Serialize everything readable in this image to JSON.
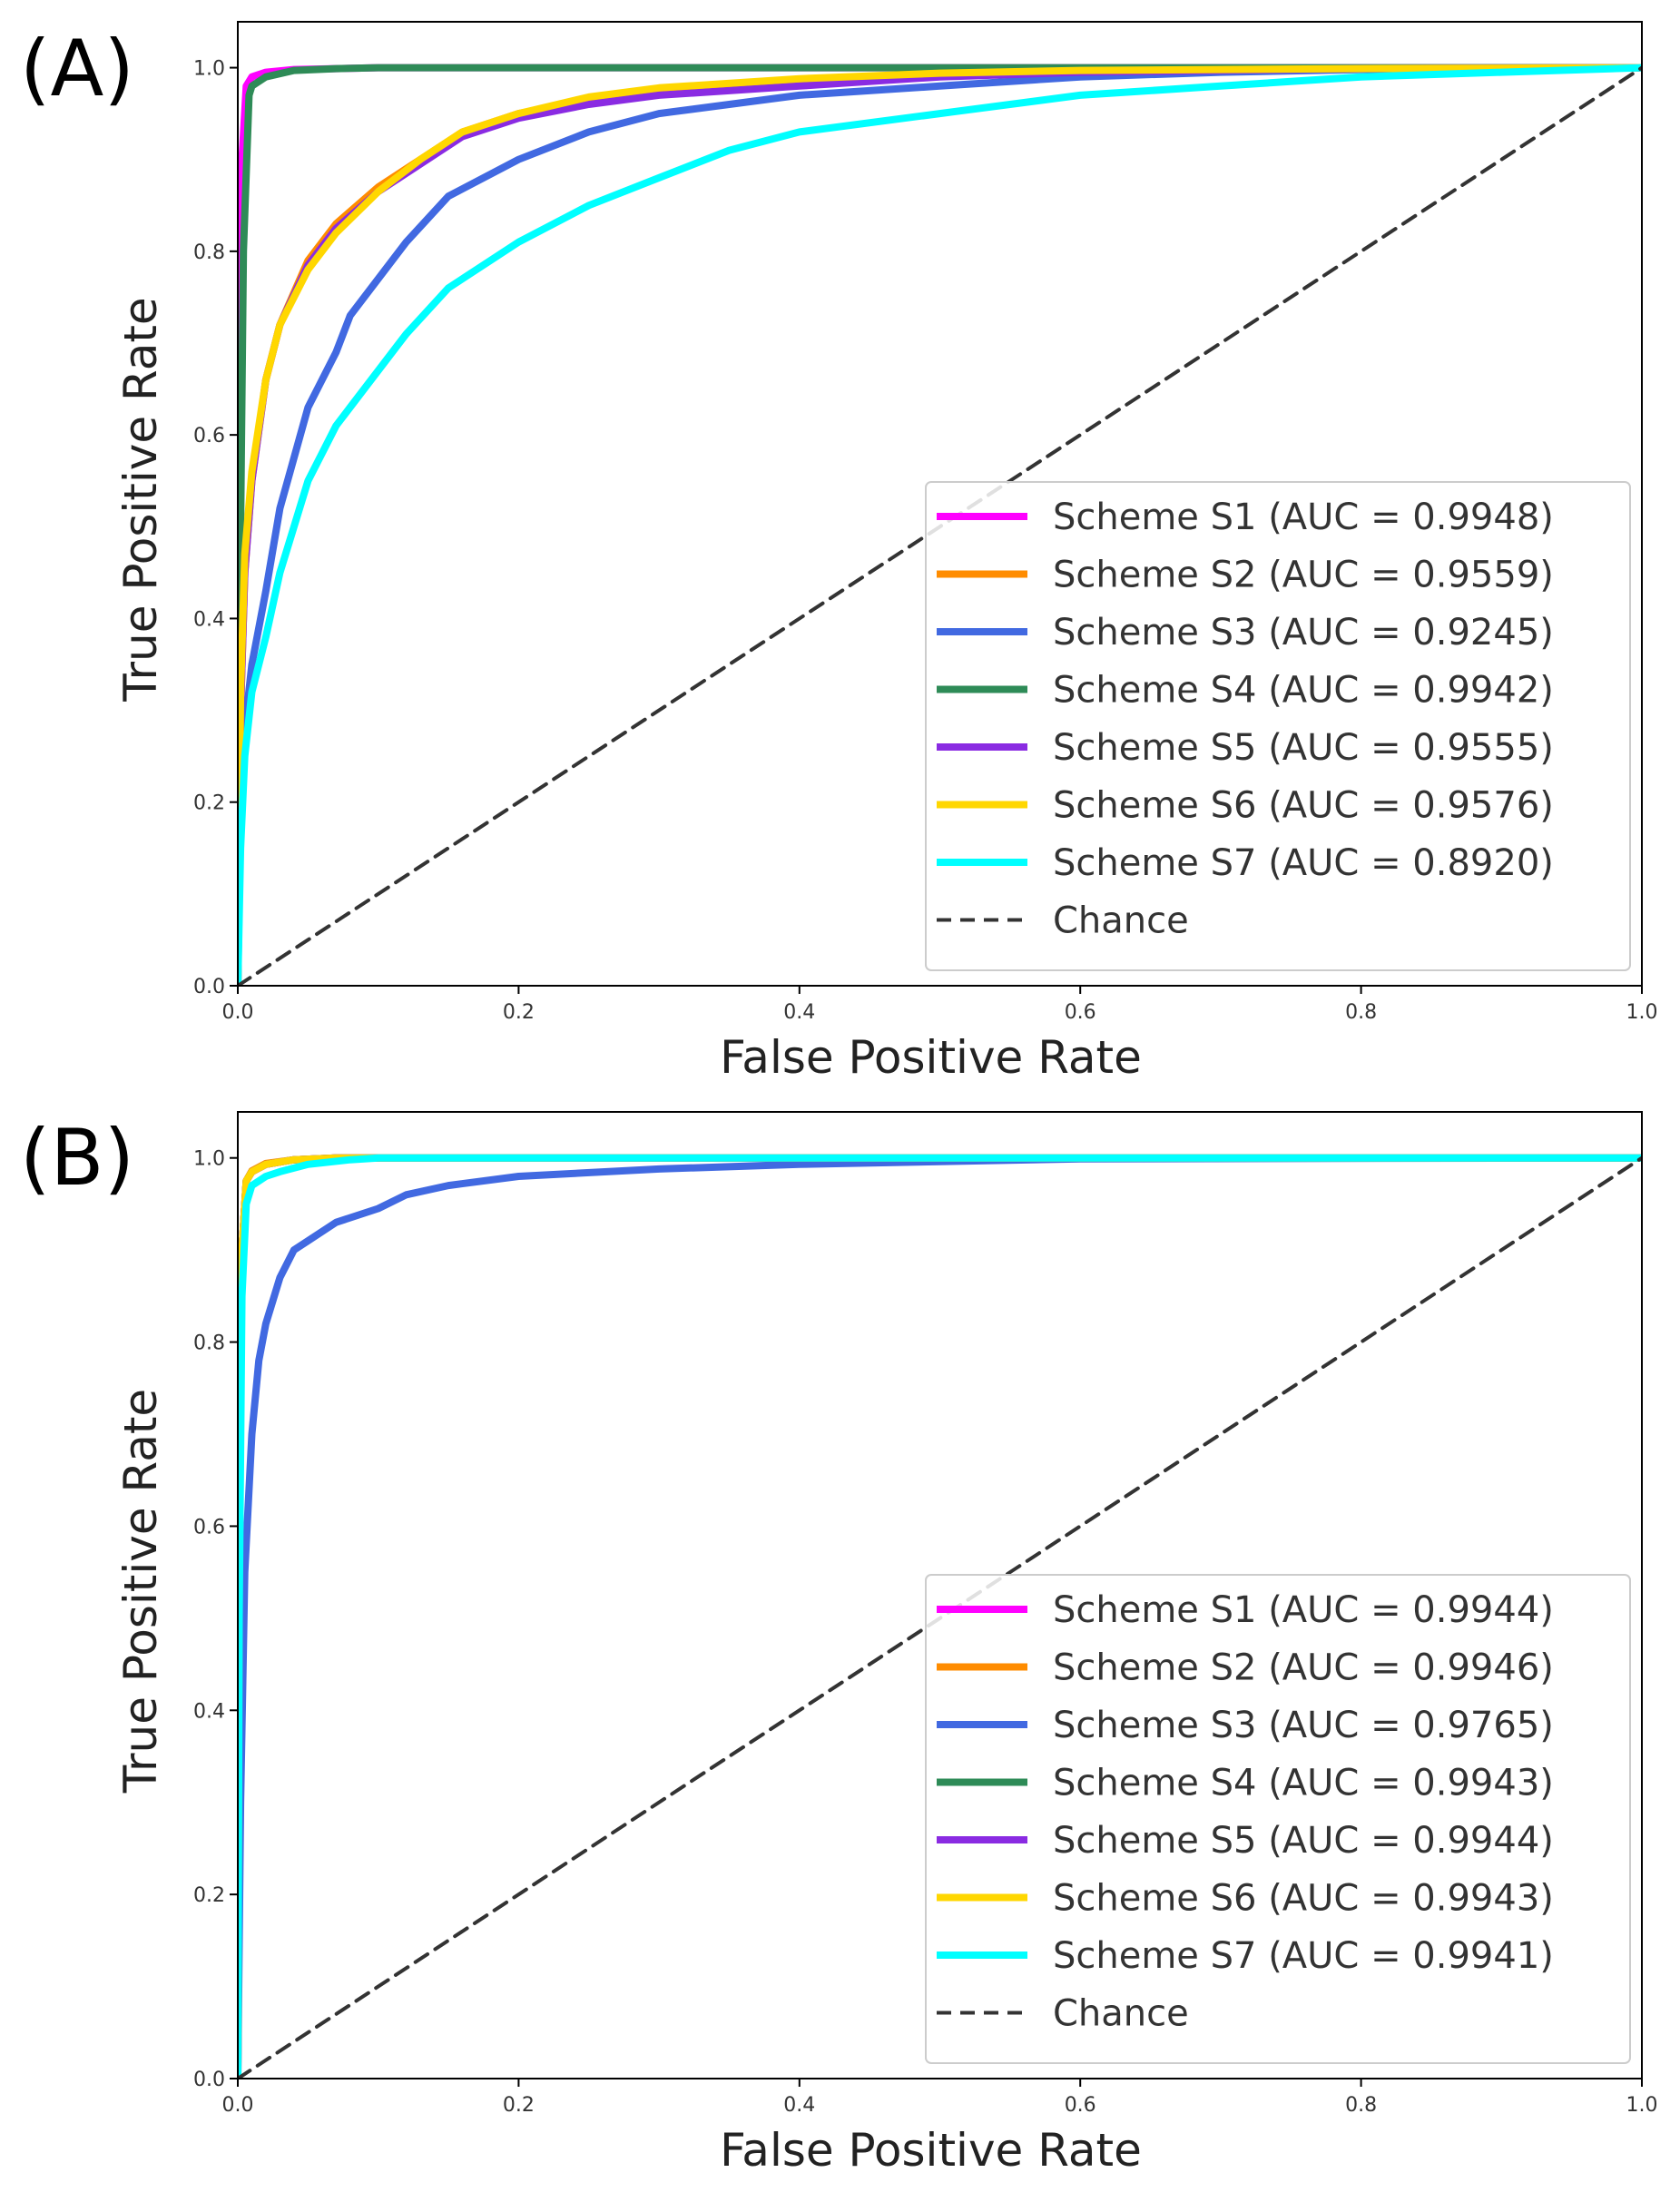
{
  "chart_data": [
    {
      "type": "line",
      "panel_label": "(A)",
      "xlabel": "False Positive Rate",
      "ylabel": "True Positive Rate",
      "xlim": [
        0.0,
        1.0
      ],
      "ylim": [
        0.0,
        1.05
      ],
      "xticks": [
        "0.0",
        "0.2",
        "0.4",
        "0.6",
        "0.8",
        "1.0"
      ],
      "yticks": [
        "0.0",
        "0.2",
        "0.4",
        "0.6",
        "0.8",
        "1.0"
      ],
      "grid": false,
      "legend_position": "lower-right",
      "series": [
        {
          "name": "Scheme S1 (AUC = 0.9948)",
          "color": "#ff00ff",
          "x": [
            0,
            0.001,
            0.003,
            0.006,
            0.01,
            0.02,
            0.04,
            0.1,
            0.3,
            1.0
          ],
          "y": [
            0,
            0.55,
            0.9,
            0.98,
            0.99,
            0.995,
            0.998,
            1.0,
            1.0,
            1.0
          ]
        },
        {
          "name": "Scheme S2 (AUC = 0.9559)",
          "color": "#ff8c00",
          "x": [
            0,
            0.002,
            0.005,
            0.01,
            0.02,
            0.03,
            0.05,
            0.07,
            0.1,
            0.13,
            0.16,
            0.2,
            0.25,
            0.3,
            0.4,
            0.5,
            0.6,
            0.8,
            1.0
          ],
          "y": [
            0,
            0.3,
            0.45,
            0.55,
            0.66,
            0.72,
            0.79,
            0.83,
            0.87,
            0.9,
            0.93,
            0.95,
            0.965,
            0.975,
            0.985,
            0.992,
            0.996,
            0.999,
            1.0
          ]
        },
        {
          "name": "Scheme S3 (AUC = 0.9245)",
          "color": "#4169e1",
          "x": [
            0,
            0.002,
            0.005,
            0.01,
            0.02,
            0.03,
            0.05,
            0.07,
            0.08,
            0.1,
            0.12,
            0.15,
            0.2,
            0.25,
            0.3,
            0.4,
            0.5,
            0.6,
            0.7,
            0.8,
            1.0
          ],
          "y": [
            0,
            0.2,
            0.28,
            0.35,
            0.43,
            0.52,
            0.63,
            0.69,
            0.73,
            0.77,
            0.81,
            0.86,
            0.9,
            0.93,
            0.95,
            0.97,
            0.98,
            0.99,
            0.995,
            0.998,
            1.0
          ]
        },
        {
          "name": "Scheme S4 (AUC = 0.9942)",
          "color": "#2e8b57",
          "x": [
            0,
            0.002,
            0.004,
            0.008,
            0.01,
            0.02,
            0.04,
            0.07,
            0.1,
            0.3,
            1.0
          ],
          "y": [
            0,
            0.5,
            0.8,
            0.97,
            0.98,
            0.99,
            0.997,
            0.999,
            1.0,
            1.0,
            1.0
          ]
        },
        {
          "name": "Scheme S5 (AUC = 0.9555)",
          "color": "#8a2be2",
          "x": [
            0,
            0.002,
            0.005,
            0.01,
            0.02,
            0.03,
            0.05,
            0.07,
            0.1,
            0.13,
            0.16,
            0.2,
            0.25,
            0.3,
            0.4,
            0.5,
            0.6,
            0.8,
            1.0
          ],
          "y": [
            0,
            0.3,
            0.45,
            0.55,
            0.66,
            0.72,
            0.785,
            0.825,
            0.865,
            0.895,
            0.925,
            0.945,
            0.96,
            0.97,
            0.98,
            0.99,
            0.995,
            0.999,
            1.0
          ]
        },
        {
          "name": "Scheme S6 (AUC = 0.9576)",
          "color": "#ffd700",
          "x": [
            0,
            0.002,
            0.005,
            0.01,
            0.02,
            0.03,
            0.05,
            0.07,
            0.1,
            0.13,
            0.16,
            0.2,
            0.25,
            0.3,
            0.4,
            0.5,
            0.6,
            0.8,
            1.0
          ],
          "y": [
            0,
            0.32,
            0.47,
            0.56,
            0.66,
            0.72,
            0.78,
            0.82,
            0.865,
            0.9,
            0.93,
            0.95,
            0.968,
            0.978,
            0.988,
            0.994,
            0.997,
            0.999,
            1.0
          ]
        },
        {
          "name": "Scheme S7 (AUC = 0.8920)",
          "color": "#00ffff",
          "x": [
            0,
            0.002,
            0.005,
            0.01,
            0.02,
            0.03,
            0.05,
            0.07,
            0.09,
            0.1,
            0.12,
            0.15,
            0.2,
            0.25,
            0.3,
            0.35,
            0.4,
            0.5,
            0.6,
            0.7,
            0.8,
            0.9,
            1.0
          ],
          "y": [
            0,
            0.15,
            0.25,
            0.32,
            0.38,
            0.45,
            0.55,
            0.61,
            0.65,
            0.67,
            0.71,
            0.76,
            0.81,
            0.85,
            0.88,
            0.91,
            0.93,
            0.95,
            0.97,
            0.98,
            0.99,
            0.995,
            1.0
          ]
        },
        {
          "name": "Chance",
          "color": "#333333",
          "dashed": true,
          "x": [
            0,
            1
          ],
          "y": [
            0,
            1
          ]
        }
      ]
    },
    {
      "type": "line",
      "panel_label": "(B)",
      "xlabel": "False Positive Rate",
      "ylabel": "True Positive Rate",
      "xlim": [
        0.0,
        1.0
      ],
      "ylim": [
        0.0,
        1.05
      ],
      "xticks": [
        "0.0",
        "0.2",
        "0.4",
        "0.6",
        "0.8",
        "1.0"
      ],
      "yticks": [
        "0.0",
        "0.2",
        "0.4",
        "0.6",
        "0.8",
        "1.0"
      ],
      "grid": false,
      "legend_position": "lower-right",
      "series": [
        {
          "name": "Scheme S1 (AUC = 0.9944)",
          "color": "#ff00ff",
          "x": [
            0,
            0.001,
            0.003,
            0.006,
            0.01,
            0.02,
            0.04,
            0.07,
            0.1,
            1.0
          ],
          "y": [
            0,
            0.6,
            0.9,
            0.975,
            0.985,
            0.993,
            0.998,
            1.0,
            1.0,
            1.0
          ]
        },
        {
          "name": "Scheme S2 (AUC = 0.9946)",
          "color": "#ff8c00",
          "x": [
            0,
            0.001,
            0.003,
            0.006,
            0.01,
            0.02,
            0.04,
            0.07,
            0.1,
            1.0
          ],
          "y": [
            0,
            0.6,
            0.9,
            0.975,
            0.986,
            0.994,
            0.998,
            1.0,
            1.0,
            1.0
          ]
        },
        {
          "name": "Scheme S3 (AUC = 0.9765)",
          "color": "#4169e1",
          "x": [
            0,
            0.002,
            0.005,
            0.01,
            0.015,
            0.02,
            0.03,
            0.04,
            0.05,
            0.07,
            0.1,
            0.12,
            0.15,
            0.2,
            0.3,
            0.4,
            0.5,
            0.6,
            1.0
          ],
          "y": [
            0,
            0.3,
            0.55,
            0.7,
            0.78,
            0.82,
            0.87,
            0.9,
            0.91,
            0.93,
            0.945,
            0.96,
            0.97,
            0.98,
            0.988,
            0.993,
            0.996,
            0.999,
            1.0
          ]
        },
        {
          "name": "Scheme S4 (AUC = 0.9943)",
          "color": "#2e8b57",
          "x": [
            0,
            0.001,
            0.003,
            0.006,
            0.01,
            0.02,
            0.04,
            0.07,
            0.1,
            1.0
          ],
          "y": [
            0,
            0.6,
            0.9,
            0.975,
            0.985,
            0.993,
            0.998,
            1.0,
            1.0,
            1.0
          ]
        },
        {
          "name": "Scheme S5 (AUC = 0.9944)",
          "color": "#8a2be2",
          "x": [
            0,
            0.001,
            0.003,
            0.006,
            0.01,
            0.02,
            0.04,
            0.07,
            0.1,
            1.0
          ],
          "y": [
            0,
            0.6,
            0.9,
            0.975,
            0.985,
            0.993,
            0.998,
            1.0,
            1.0,
            1.0
          ]
        },
        {
          "name": "Scheme S6 (AUC = 0.9943)",
          "color": "#ffd700",
          "x": [
            0,
            0.001,
            0.003,
            0.006,
            0.01,
            0.02,
            0.04,
            0.07,
            0.1,
            1.0
          ],
          "y": [
            0,
            0.6,
            0.9,
            0.975,
            0.985,
            0.993,
            0.998,
            1.0,
            1.0,
            1.0
          ]
        },
        {
          "name": "Scheme S7 (AUC = 0.9941)",
          "color": "#00ffff",
          "x": [
            0,
            0.001,
            0.003,
            0.006,
            0.01,
            0.015,
            0.02,
            0.03,
            0.05,
            0.08,
            0.1,
            1.0
          ],
          "y": [
            0,
            0.5,
            0.85,
            0.95,
            0.97,
            0.975,
            0.98,
            0.985,
            0.993,
            0.998,
            1.0,
            1.0
          ]
        },
        {
          "name": "Chance",
          "color": "#333333",
          "dashed": true,
          "x": [
            0,
            1
          ],
          "y": [
            0,
            1
          ]
        }
      ]
    }
  ]
}
